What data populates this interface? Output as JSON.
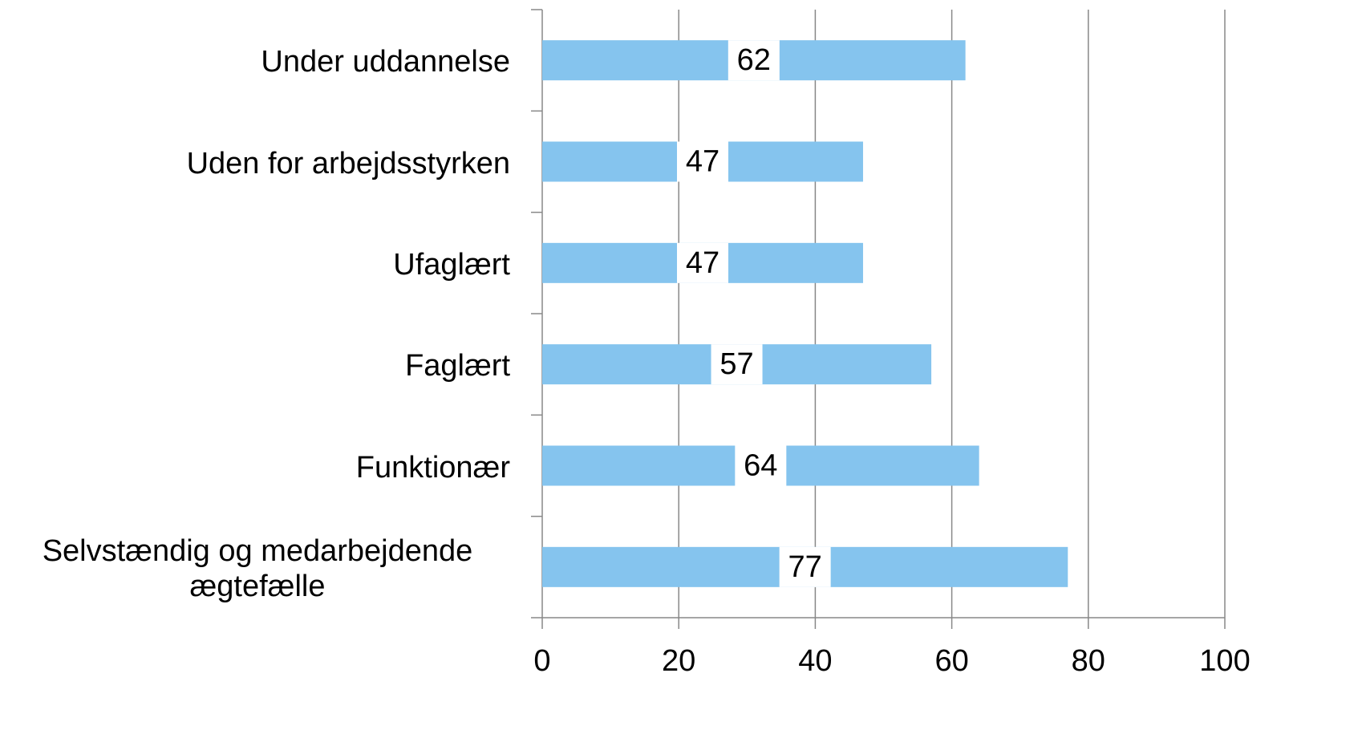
{
  "chart_data": {
    "type": "barh",
    "categories": [
      "Under uddannelse",
      "Uden for arbejdsstyrken",
      "Ufaglært",
      "Faglært",
      "Funktionær",
      "Selvstændig og medarbejdende ægtefælle"
    ],
    "values": [
      62,
      47,
      47,
      57,
      64,
      77
    ],
    "color": "#85c4ee",
    "xlim": [
      0,
      100
    ],
    "xticks": [
      0,
      20,
      40,
      60,
      80,
      100
    ],
    "grid": true
  }
}
